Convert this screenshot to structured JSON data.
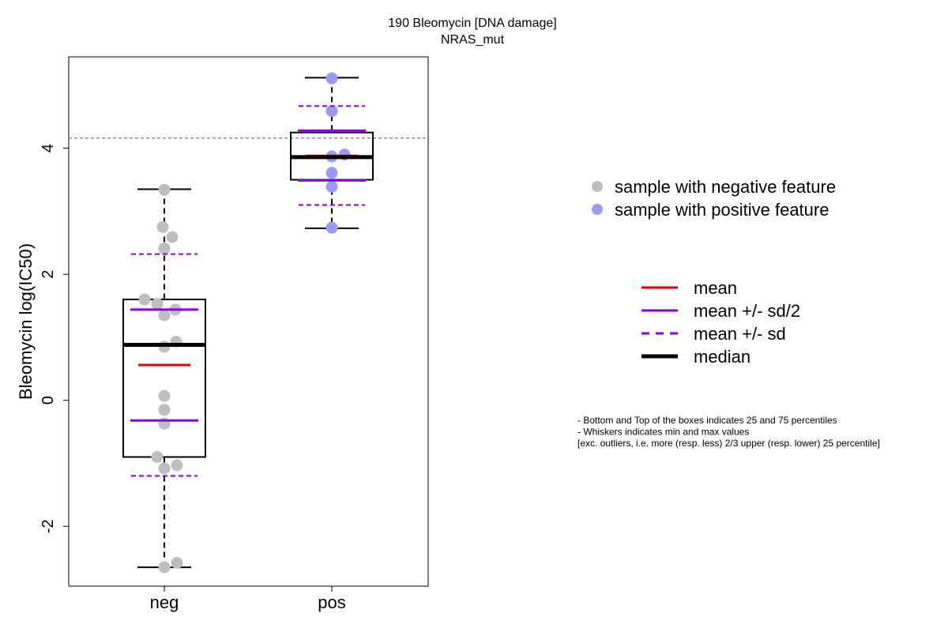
{
  "chart_data": {
    "type": "box",
    "title": "190 Bleomycin [DNA damage]",
    "subtitle": "NRAS_mut",
    "ylabel": "Bleomycin log(IC50)",
    "xlabel": "",
    "ylim": [
      -2.95,
      5.45
    ],
    "yticks": [
      -2,
      0,
      2,
      4
    ],
    "ytick_labels": [
      "-2",
      "0",
      "2",
      "4"
    ],
    "threshold_line": 4.16,
    "categories": [
      "neg",
      "pos"
    ],
    "groups": [
      {
        "name": "neg",
        "color": "#bebebe",
        "whisker_low": -2.65,
        "q1": -0.9,
        "median": 0.88,
        "q3": 1.6,
        "whisker_high": 3.35,
        "mean": 0.56,
        "mean_minus_half_sd": -0.32,
        "mean_plus_half_sd": 1.44,
        "mean_minus_sd": -1.2,
        "mean_plus_sd": 2.32,
        "points": [
          {
            "x": 0.0,
            "y": 3.34
          },
          {
            "x": -0.02,
            "y": 2.75
          },
          {
            "x": 0.1,
            "y": 2.59
          },
          {
            "x": 0.0,
            "y": 2.41
          },
          {
            "x": -0.25,
            "y": 1.6
          },
          {
            "x": -0.09,
            "y": 1.53
          },
          {
            "x": 0.14,
            "y": 1.44
          },
          {
            "x": 0.0,
            "y": 1.35
          },
          {
            "x": 0.15,
            "y": 0.93
          },
          {
            "x": 0.0,
            "y": 0.85
          },
          {
            "x": 0.0,
            "y": 0.07
          },
          {
            "x": 0.0,
            "y": -0.15
          },
          {
            "x": 0.0,
            "y": -0.37
          },
          {
            "x": -0.09,
            "y": -0.9
          },
          {
            "x": 0.16,
            "y": -1.03
          },
          {
            "x": 0.0,
            "y": -1.08
          },
          {
            "x": 0.16,
            "y": -2.58
          },
          {
            "x": 0.0,
            "y": -2.65
          }
        ]
      },
      {
        "name": "pos",
        "color": "#9999ff",
        "whisker_low": 2.73,
        "q1": 3.5,
        "median": 3.86,
        "q3": 4.25,
        "whisker_high": 5.12,
        "mean": 3.88,
        "mean_minus_half_sd": 3.49,
        "mean_plus_half_sd": 4.28,
        "mean_minus_sd": 3.1,
        "mean_plus_sd": 4.67,
        "points": [
          {
            "x": 0.0,
            "y": 5.11
          },
          {
            "x": 0.0,
            "y": 4.59
          },
          {
            "x": 0.0,
            "y": 3.87
          },
          {
            "x": 0.16,
            "y": 3.9
          },
          {
            "x": 0.0,
            "y": 3.61
          },
          {
            "x": 0.0,
            "y": 3.39
          },
          {
            "x": 0.0,
            "y": 2.74
          }
        ]
      }
    ],
    "legend_points": [
      {
        "label": "sample with negative feature",
        "color": "#bebebe"
      },
      {
        "label": "sample with positive feature",
        "color": "#9999ff"
      }
    ],
    "legend_lines": [
      {
        "label": "mean",
        "color": "#ee0000",
        "style": "solid"
      },
      {
        "label": "mean +/- sd/2",
        "color": "#8b00ee",
        "style": "solid"
      },
      {
        "label": "mean +/- sd",
        "color": "#8b00ee",
        "style": "dashed"
      },
      {
        "label": "median",
        "color": "#000000",
        "style": "thick"
      }
    ],
    "notes": [
      "- Bottom and Top of the boxes indicates 25 and 75 percentiles",
      "- Whiskers indicates min and max values",
      "[exc. outliers, i.e. more (resp. less) 2/3 upper (resp. lower) 25 percentile]"
    ]
  }
}
